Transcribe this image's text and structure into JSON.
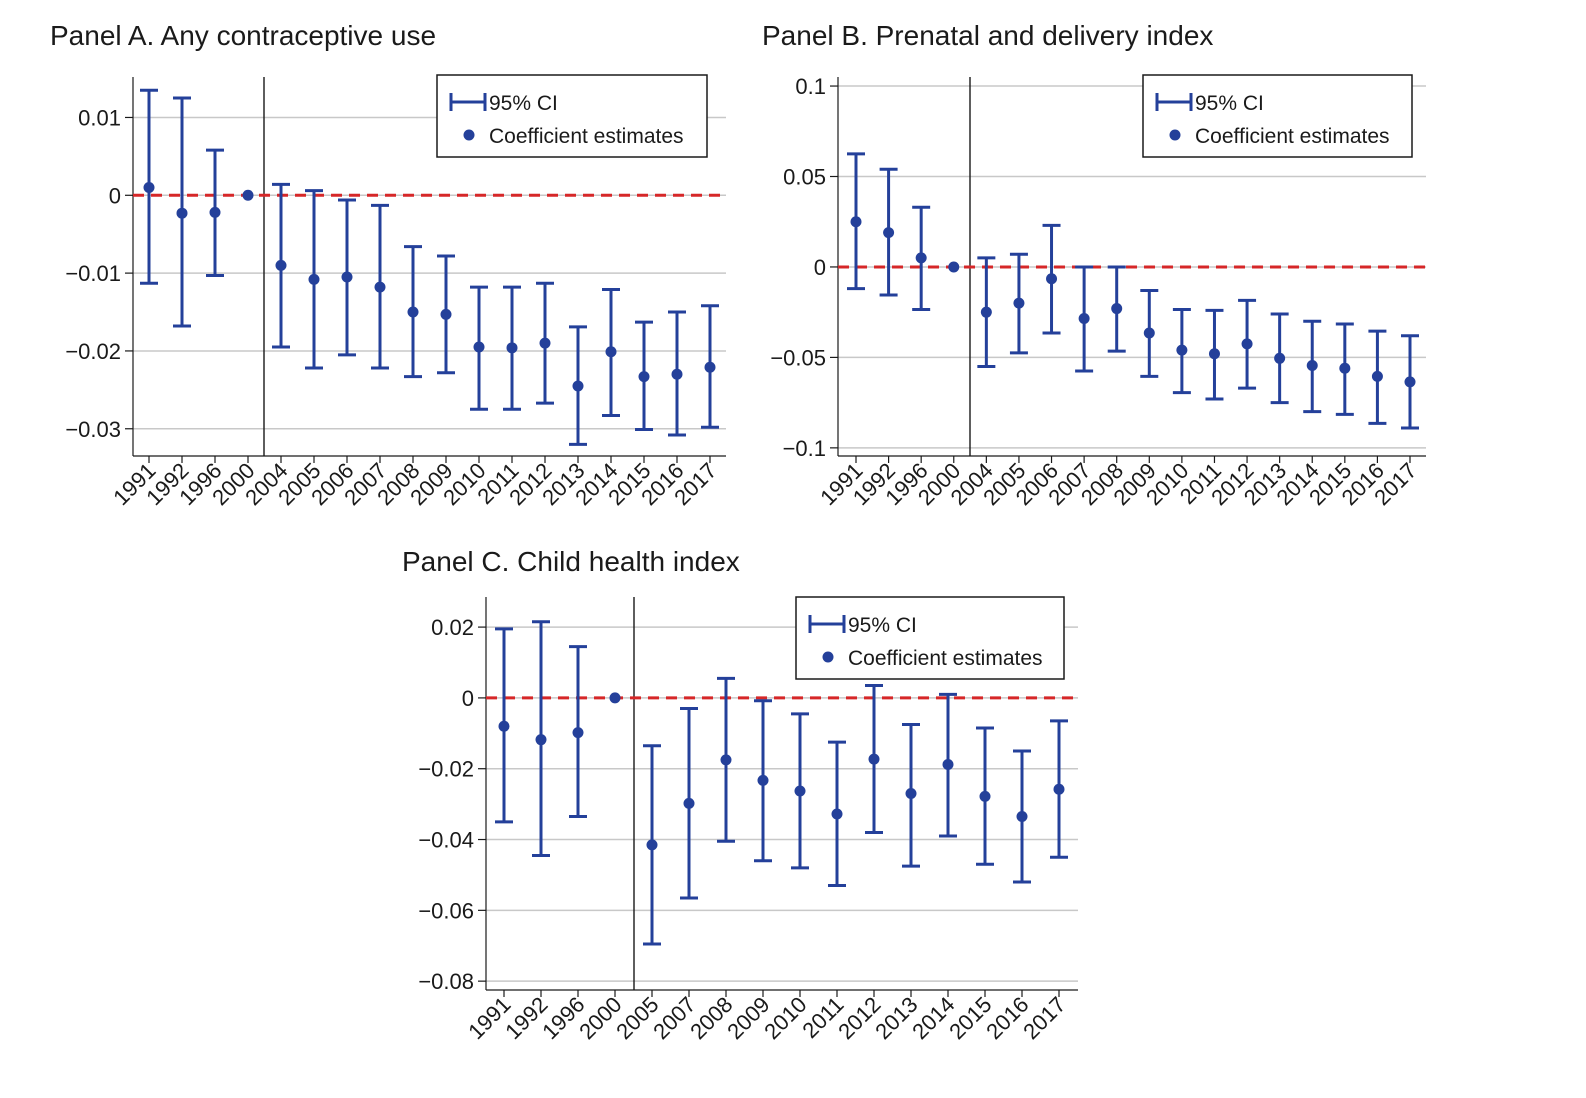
{
  "chart_data": [
    {
      "type": "scatter",
      "title": "Panel A. Any contraceptive use",
      "xlabel": "",
      "ylabel": "",
      "categories": [
        "1991",
        "1992",
        "1996",
        "2000",
        "2004",
        "2005",
        "2006",
        "2007",
        "2008",
        "2009",
        "2010",
        "2011",
        "2012",
        "2013",
        "2014",
        "2015",
        "2016",
        "2017"
      ],
      "series": [
        {
          "name": "Coefficient estimates",
          "values": [
            0.001,
            -0.0023,
            -0.0022,
            0.0,
            -0.009,
            -0.0108,
            -0.0105,
            -0.0118,
            -0.015,
            -0.0153,
            -0.0195,
            -0.0196,
            -0.019,
            -0.0245,
            -0.0201,
            -0.0233,
            -0.023,
            -0.0221
          ]
        },
        {
          "name": "95% CI",
          "lower": [
            -0.0113,
            -0.0168,
            -0.0103,
            0.0,
            -0.0195,
            -0.0222,
            -0.0205,
            -0.0222,
            -0.0233,
            -0.0228,
            -0.0275,
            -0.0275,
            -0.0267,
            -0.032,
            -0.0283,
            -0.0301,
            -0.0308,
            -0.0298
          ],
          "upper": [
            0.0135,
            0.0125,
            0.0058,
            0.0,
            0.0014,
            0.0006,
            -0.0006,
            -0.0013,
            -0.0066,
            -0.0078,
            -0.0118,
            -0.0118,
            -0.0113,
            -0.0169,
            -0.0121,
            -0.0163,
            -0.015,
            -0.0142
          ]
        }
      ],
      "reference_category": "2000",
      "ylim": [
        -0.0335,
        0.0152
      ],
      "yticks": [
        0.01,
        0,
        -0.01,
        -0.02,
        -0.03
      ],
      "ytick_labels": [
        "0.01",
        "0",
        "−0.01",
        "−0.02",
        "−0.03"
      ],
      "zero_line": true,
      "grid": true,
      "legend": "top-right"
    },
    {
      "type": "scatter",
      "title": "Panel B. Prenatal and delivery index",
      "xlabel": "",
      "ylabel": "",
      "categories": [
        "1991",
        "1992",
        "1996",
        "2000",
        "2004",
        "2005",
        "2006",
        "2007",
        "2008",
        "2009",
        "2010",
        "2011",
        "2012",
        "2013",
        "2014",
        "2015",
        "2016",
        "2017"
      ],
      "series": [
        {
          "name": "Coefficient estimates",
          "values": [
            0.025,
            0.019,
            0.005,
            0.0,
            -0.025,
            -0.02,
            -0.0065,
            -0.0285,
            -0.023,
            -0.0365,
            -0.046,
            -0.048,
            -0.0425,
            -0.0505,
            -0.0545,
            -0.056,
            -0.0605,
            -0.0635
          ]
        },
        {
          "name": "95% CI",
          "lower": [
            -0.012,
            -0.0155,
            -0.0235,
            0.0,
            -0.055,
            -0.0475,
            -0.0365,
            -0.0575,
            -0.0465,
            -0.0605,
            -0.0695,
            -0.073,
            -0.067,
            -0.075,
            -0.08,
            -0.0815,
            -0.0865,
            -0.089
          ],
          "upper": [
            0.0625,
            0.054,
            0.033,
            0.0,
            0.005,
            0.007,
            0.023,
            0.0,
            0.0,
            -0.013,
            -0.0235,
            -0.024,
            -0.0185,
            -0.026,
            -0.03,
            -0.0315,
            -0.0355,
            -0.038
          ]
        }
      ],
      "reference_category": "2000",
      "ylim": [
        -0.1045,
        0.105
      ],
      "yticks": [
        0.1,
        0.05,
        0,
        -0.05,
        -0.1
      ],
      "ytick_labels": [
        "0.1",
        "0.05",
        "0",
        "−0.05",
        "−0.1"
      ],
      "zero_line": true,
      "grid": true,
      "legend": "top-right"
    },
    {
      "type": "scatter",
      "title": "Panel C. Child health index",
      "xlabel": "",
      "ylabel": "",
      "categories": [
        "1991",
        "1992",
        "1996",
        "2000",
        "2005",
        "2007",
        "2008",
        "2009",
        "2010",
        "2011",
        "2012",
        "2013",
        "2014",
        "2015",
        "2016",
        "2017"
      ],
      "series": [
        {
          "name": "Coefficient estimates",
          "values": [
            -0.008,
            -0.0118,
            -0.0098,
            0.0,
            -0.0415,
            -0.0298,
            -0.0175,
            -0.0233,
            -0.0263,
            -0.0328,
            -0.0173,
            -0.027,
            -0.0188,
            -0.0278,
            -0.0335,
            -0.0258
          ]
        },
        {
          "name": "95% CI",
          "lower": [
            -0.035,
            -0.0445,
            -0.0335,
            0.0,
            -0.0695,
            -0.0565,
            -0.0405,
            -0.046,
            -0.048,
            -0.053,
            -0.038,
            -0.0475,
            -0.039,
            -0.047,
            -0.052,
            -0.045
          ],
          "upper": [
            0.0195,
            0.0215,
            0.0145,
            0.0,
            -0.0135,
            -0.003,
            0.0055,
            -0.0008,
            -0.0045,
            -0.0125,
            0.0035,
            -0.0075,
            0.001,
            -0.0085,
            -0.015,
            -0.0065
          ]
        }
      ],
      "reference_category": "2000",
      "ylim": [
        -0.0825,
        0.0285
      ],
      "yticks": [
        0.02,
        0,
        -0.02,
        -0.04,
        -0.06,
        -0.08
      ],
      "ytick_labels": [
        "0.02",
        "0",
        "−0.02",
        "−0.04",
        "−0.06",
        "−0.08"
      ],
      "zero_line": true,
      "grid": true,
      "legend": "top-right"
    }
  ],
  "colors": {
    "estimate": "#24409a",
    "zero_line": "#d62728",
    "grid": "#c8c8c8",
    "axis": "#1a1a1a"
  }
}
